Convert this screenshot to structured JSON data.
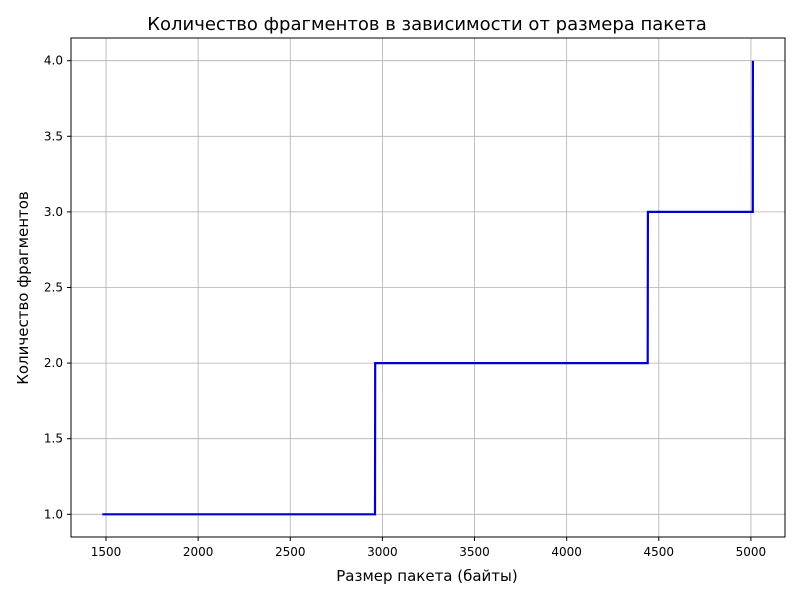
{
  "chart_data": {
    "type": "line",
    "title": "Количество фрагментов в зависимости от размера пакета",
    "xlabel": "Размер пакета (байты)",
    "ylabel": "Количество фрагментов",
    "xlim": [
      1310,
      5185
    ],
    "ylim": [
      0.85,
      4.15
    ],
    "x_ticks": [
      1500,
      2000,
      2500,
      3000,
      3500,
      4000,
      4500,
      5000
    ],
    "x_tick_labels": [
      "1500",
      "2000",
      "2500",
      "3000",
      "3500",
      "4000",
      "4500",
      "5000"
    ],
    "y_ticks": [
      1.0,
      1.5,
      2.0,
      2.5,
      3.0,
      3.5,
      4.0
    ],
    "y_tick_labels": [
      "1.0",
      "1.5",
      "2.0",
      "2.5",
      "3.0",
      "3.5",
      "4.0"
    ],
    "grid": true,
    "line_style": "step",
    "series": [
      {
        "color": "#0000cc",
        "x": [
          1480,
          2960,
          2961,
          4440,
          4441,
          5010,
          5011
        ],
        "y": [
          1,
          1,
          2,
          2,
          3,
          3,
          4
        ]
      }
    ]
  }
}
